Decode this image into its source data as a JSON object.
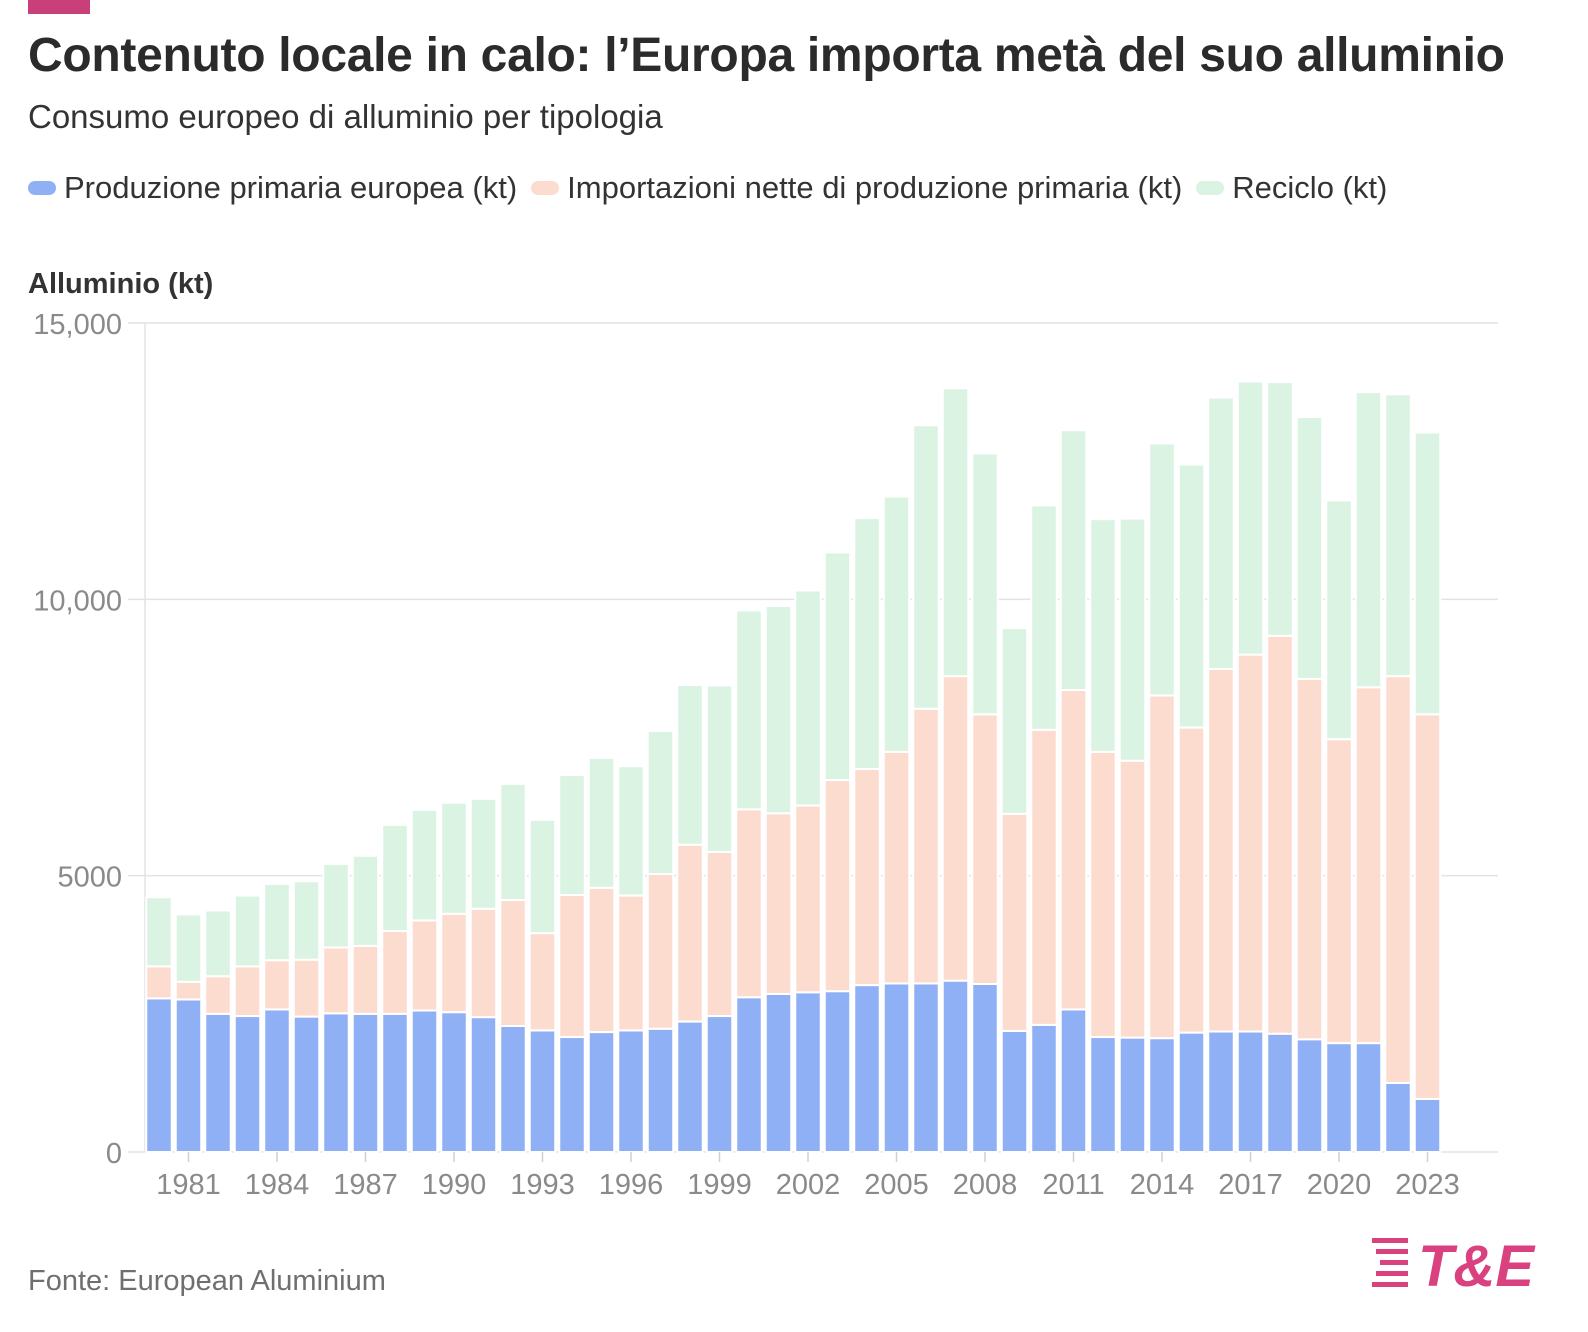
{
  "header": {
    "title": "Contenuto locale in calo: l’Europa importa metà del suo alluminio",
    "subtitle": "Consumo europeo di alluminio per tipologia"
  },
  "footer": {
    "source": "Fonte: European Aluminium",
    "logo_text": "T&E"
  },
  "colors": {
    "accent": "#c93f7a",
    "primary": "#8fb0f5",
    "imports": "#fddcd0",
    "recycle": "#dbf3e3",
    "logo": "#d9417f"
  },
  "chart_data": {
    "type": "bar",
    "stacked": true,
    "ylabel": "Alluminio (kt)",
    "ylim": [
      0,
      15000
    ],
    "yticks": [
      0,
      5000,
      10000,
      15000
    ],
    "ytick_labels": [
      "0",
      "5000",
      "10,000",
      "15,000"
    ],
    "xtick_labels": [
      "1981",
      "1984",
      "1987",
      "1990",
      "1993",
      "1996",
      "1999",
      "2002",
      "2005",
      "2008",
      "2011",
      "2014",
      "2017",
      "2020",
      "2023"
    ],
    "categories": [
      "1980",
      "1981",
      "1982",
      "1983",
      "1984",
      "1985",
      "1986",
      "1987",
      "1988",
      "1989",
      "1990",
      "1991",
      "1992",
      "1993",
      "1994",
      "1995",
      "1996",
      "1997",
      "1998",
      "1999",
      "2000",
      "2001",
      "2002",
      "2003",
      "2004",
      "2005",
      "2006",
      "2007",
      "2008",
      "2009",
      "2010",
      "2011",
      "2012",
      "2013",
      "2014",
      "2015",
      "2016",
      "2017",
      "2018",
      "2019",
      "2020",
      "2021",
      "2022",
      "2023"
    ],
    "series": [
      {
        "name": "Produzione primaria europea (kt)",
        "color": "#8fb0f5",
        "values": [
          2780,
          2760,
          2500,
          2460,
          2580,
          2450,
          2510,
          2500,
          2500,
          2560,
          2530,
          2440,
          2280,
          2200,
          2080,
          2170,
          2200,
          2230,
          2360,
          2460,
          2800,
          2860,
          2890,
          2910,
          3020,
          3050,
          3050,
          3100,
          3040,
          2190,
          2300,
          2580,
          2080,
          2070,
          2060,
          2160,
          2180,
          2180,
          2140,
          2040,
          1970,
          1970,
          1250,
          960
        ]
      },
      {
        "name": "Importazioni nette di produzione primaria (kt)",
        "color": "#fddcd0",
        "values": [
          580,
          320,
          680,
          900,
          890,
          1030,
          1190,
          1230,
          1500,
          1630,
          1780,
          1960,
          2280,
          1760,
          2570,
          2610,
          2440,
          2800,
          3200,
          2970,
          3400,
          3270,
          3380,
          3820,
          3910,
          4190,
          4970,
          5510,
          4880,
          3930,
          5340,
          5780,
          5160,
          5010,
          6200,
          5520,
          6560,
          6820,
          7200,
          6520,
          5500,
          6440,
          7360,
          6960
        ]
      },
      {
        "name": "Reciclo (kt)",
        "color": "#dbf3e3",
        "values": [
          1250,
          1220,
          1190,
          1280,
          1380,
          1420,
          1510,
          1630,
          1920,
          2000,
          2010,
          1990,
          2100,
          2050,
          2170,
          2350,
          2340,
          2590,
          2890,
          3010,
          3600,
          3750,
          3890,
          4120,
          4540,
          4620,
          5130,
          5210,
          4720,
          3360,
          4060,
          4700,
          4210,
          4380,
          4560,
          4760,
          4910,
          4940,
          4590,
          4740,
          4320,
          5340,
          5100,
          5100
        ]
      }
    ]
  }
}
